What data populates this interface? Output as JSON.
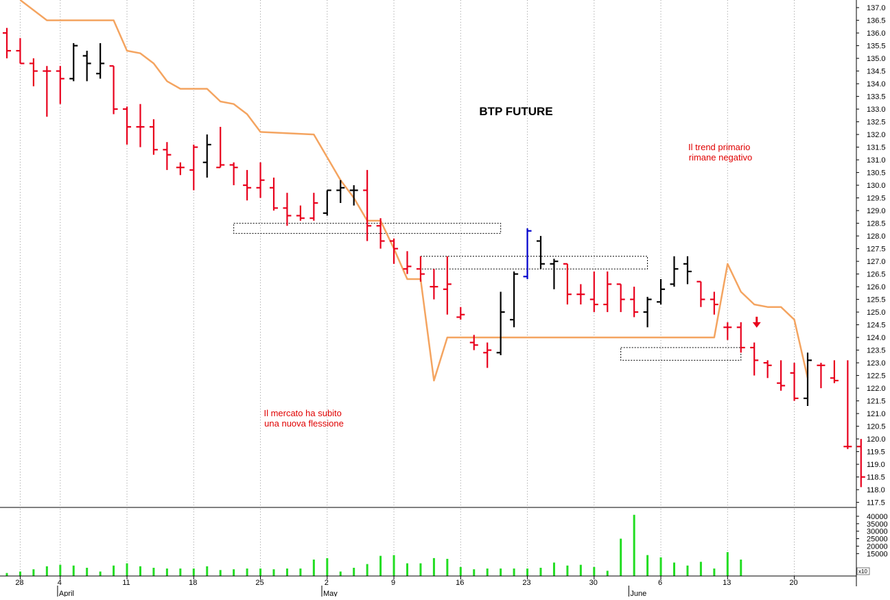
{
  "chart_data": [
    {
      "type": "bar",
      "subtype": "ohlc",
      "title": "BTP FUTURE",
      "ylim": [
        117.3,
        137.3
      ],
      "yticks": [
        117.5,
        118.0,
        118.5,
        119.0,
        119.5,
        120.0,
        120.5,
        121.0,
        121.5,
        122.0,
        122.5,
        123.0,
        123.5,
        124.0,
        124.5,
        125.0,
        125.5,
        126.0,
        126.5,
        127.0,
        127.5,
        128.0,
        128.5,
        129.0,
        129.5,
        130.0,
        130.5,
        131.0,
        131.5,
        132.0,
        132.5,
        133.0,
        133.5,
        134.0,
        134.5,
        135.0,
        135.5,
        136.0,
        136.5,
        137.0
      ],
      "ytick_labels": [
        "117.5",
        "118.0",
        "118.5",
        "119.0",
        "119.5",
        "120.0",
        "120.5",
        "121.0",
        "121.5",
        "122.0",
        "122.5",
        "123.0",
        "123.5",
        "124.0",
        "124.5",
        "125.0",
        "125.5",
        "126.0",
        "126.5",
        "127.0",
        "127.5",
        "128.0",
        "128.5",
        "129.0",
        "129.5",
        "130.0",
        "130.5",
        "131.0",
        "131.5",
        "132.0",
        "132.5",
        "133.0",
        "133.5",
        "134.0",
        "134.5",
        "135.0",
        "135.5",
        "136.0",
        "136.5",
        "137.0"
      ],
      "y_axis_position": "right",
      "grid": true,
      "colors": {
        "down": "#e8001c",
        "up": "#000000",
        "highlight": "#0000cc",
        "line": "#f4a460",
        "box": "#000000"
      },
      "bars": [
        {
          "d": 0,
          "o": 136.0,
          "h": 136.2,
          "l": 135.0,
          "c": 135.3,
          "color": "down"
        },
        {
          "d": 1,
          "o": 135.3,
          "h": 135.8,
          "l": 134.8,
          "c": 134.8,
          "color": "down"
        },
        {
          "d": 2,
          "o": 134.8,
          "h": 135.0,
          "l": 133.9,
          "c": 134.5,
          "color": "down"
        },
        {
          "d": 3,
          "o": 134.5,
          "h": 134.7,
          "l": 132.7,
          "c": 134.5,
          "color": "down"
        },
        {
          "d": 4,
          "o": 134.5,
          "h": 134.7,
          "l": 133.2,
          "c": 134.2,
          "color": "down"
        },
        {
          "d": 5,
          "o": 134.2,
          "h": 135.6,
          "l": 134.1,
          "c": 135.5,
          "color": "up"
        },
        {
          "d": 6,
          "o": 135.1,
          "h": 135.3,
          "l": 134.1,
          "c": 134.8,
          "color": "up"
        },
        {
          "d": 7,
          "o": 134.4,
          "h": 135.6,
          "l": 134.2,
          "c": 134.8,
          "color": "up"
        },
        {
          "d": 8,
          "o": 134.7,
          "h": 134.7,
          "l": 132.8,
          "c": 133.0,
          "color": "down"
        },
        {
          "d": 9,
          "o": 133.0,
          "h": 133.1,
          "l": 131.6,
          "c": 132.3,
          "color": "down"
        },
        {
          "d": 10,
          "o": 132.3,
          "h": 133.2,
          "l": 131.5,
          "c": 132.3,
          "color": "down"
        },
        {
          "d": 11,
          "o": 132.3,
          "h": 132.6,
          "l": 131.2,
          "c": 131.4,
          "color": "down"
        },
        {
          "d": 12,
          "o": 131.4,
          "h": 131.7,
          "l": 130.6,
          "c": 131.2,
          "color": "down"
        },
        {
          "d": 13,
          "o": 130.7,
          "h": 130.9,
          "l": 130.4,
          "c": 130.7,
          "color": "down"
        },
        {
          "d": 14,
          "o": 130.6,
          "h": 131.6,
          "l": 129.8,
          "c": 131.5,
          "color": "down"
        },
        {
          "d": 15,
          "o": 130.9,
          "h": 132.0,
          "l": 130.3,
          "c": 131.6,
          "color": "up"
        },
        {
          "d": 16,
          "o": 130.7,
          "h": 132.3,
          "l": 130.7,
          "c": 130.8,
          "color": "down"
        },
        {
          "d": 17,
          "o": 130.8,
          "h": 130.9,
          "l": 130.0,
          "c": 130.7,
          "color": "down"
        },
        {
          "d": 18,
          "o": 130.0,
          "h": 130.6,
          "l": 129.4,
          "c": 129.9,
          "color": "down"
        },
        {
          "d": 19,
          "o": 129.9,
          "h": 130.9,
          "l": 129.5,
          "c": 130.2,
          "color": "down"
        },
        {
          "d": 20,
          "o": 129.9,
          "h": 130.3,
          "l": 129.0,
          "c": 129.1,
          "color": "down"
        },
        {
          "d": 21,
          "o": 129.1,
          "h": 129.7,
          "l": 128.4,
          "c": 128.8,
          "color": "down"
        },
        {
          "d": 22,
          "o": 128.8,
          "h": 129.2,
          "l": 128.6,
          "c": 128.7,
          "color": "down"
        },
        {
          "d": 23,
          "o": 128.7,
          "h": 129.7,
          "l": 128.6,
          "c": 129.3,
          "color": "down"
        },
        {
          "d": 24,
          "o": 128.9,
          "h": 129.8,
          "l": 128.8,
          "c": 129.8,
          "color": "up"
        },
        {
          "d": 25,
          "o": 129.8,
          "h": 130.2,
          "l": 129.3,
          "c": 129.9,
          "color": "up"
        },
        {
          "d": 26,
          "o": 129.8,
          "h": 130.0,
          "l": 129.2,
          "c": 129.8,
          "color": "up"
        },
        {
          "d": 27,
          "o": 129.8,
          "h": 130.6,
          "l": 127.8,
          "c": 128.4,
          "color": "down"
        },
        {
          "d": 28,
          "o": 128.4,
          "h": 128.7,
          "l": 127.5,
          "c": 127.8,
          "color": "down"
        },
        {
          "d": 29,
          "o": 127.8,
          "h": 127.9,
          "l": 126.9,
          "c": 127.5,
          "color": "down"
        },
        {
          "d": 30,
          "o": 126.7,
          "h": 127.4,
          "l": 126.5,
          "c": 126.8,
          "color": "down"
        },
        {
          "d": 31,
          "o": 126.7,
          "h": 127.2,
          "l": 126.2,
          "c": 126.5,
          "color": "down"
        },
        {
          "d": 32,
          "o": 126.0,
          "h": 126.7,
          "l": 125.5,
          "c": 126.0,
          "color": "down"
        },
        {
          "d": 33,
          "o": 125.9,
          "h": 127.2,
          "l": 124.9,
          "c": 126.1,
          "color": "down"
        },
        {
          "d": 34,
          "o": 124.8,
          "h": 125.2,
          "l": 124.7,
          "c": 124.9,
          "color": "down"
        },
        {
          "d": 35,
          "o": 123.8,
          "h": 124.1,
          "l": 123.5,
          "c": 123.7,
          "color": "down"
        },
        {
          "d": 36,
          "o": 123.4,
          "h": 123.8,
          "l": 122.8,
          "c": 123.5,
          "color": "down"
        },
        {
          "d": 37,
          "o": 123.4,
          "h": 125.8,
          "l": 123.3,
          "c": 125.0,
          "color": "up"
        },
        {
          "d": 38,
          "o": 124.7,
          "h": 126.6,
          "l": 124.4,
          "c": 126.5,
          "color": "up"
        },
        {
          "d": 39,
          "o": 126.4,
          "h": 128.3,
          "l": 126.3,
          "c": 128.2,
          "color": "highlight"
        },
        {
          "d": 40,
          "o": 127.8,
          "h": 128.0,
          "l": 126.7,
          "c": 126.9,
          "color": "up"
        },
        {
          "d": 41,
          "o": 126.9,
          "h": 127.1,
          "l": 125.9,
          "c": 127.0,
          "color": "up"
        },
        {
          "d": 42,
          "o": 126.9,
          "h": 126.9,
          "l": 125.3,
          "c": 125.7,
          "color": "down"
        },
        {
          "d": 43,
          "o": 125.7,
          "h": 126.1,
          "l": 125.3,
          "c": 125.7,
          "color": "down"
        },
        {
          "d": 44,
          "o": 125.5,
          "h": 126.6,
          "l": 125.0,
          "c": 125.3,
          "color": "down"
        },
        {
          "d": 45,
          "o": 125.3,
          "h": 126.6,
          "l": 125.0,
          "c": 126.1,
          "color": "down"
        },
        {
          "d": 46,
          "o": 126.1,
          "h": 126.1,
          "l": 125.0,
          "c": 125.5,
          "color": "down"
        },
        {
          "d": 47,
          "o": 125.5,
          "h": 126.0,
          "l": 124.8,
          "c": 125.0,
          "color": "down"
        },
        {
          "d": 48,
          "o": 125.0,
          "h": 125.6,
          "l": 124.4,
          "c": 125.5,
          "color": "up"
        },
        {
          "d": 49,
          "o": 125.4,
          "h": 126.3,
          "l": 125.3,
          "c": 125.9,
          "color": "up"
        },
        {
          "d": 50,
          "o": 126.1,
          "h": 127.2,
          "l": 126.0,
          "c": 126.7,
          "color": "up"
        },
        {
          "d": 51,
          "o": 126.9,
          "h": 127.2,
          "l": 126.1,
          "c": 126.6,
          "color": "up"
        },
        {
          "d": 52,
          "o": 126.2,
          "h": 126.2,
          "l": 125.2,
          "c": 125.5,
          "color": "down"
        },
        {
          "d": 53,
          "o": 125.5,
          "h": 125.8,
          "l": 124.9,
          "c": 125.3,
          "color": "down"
        },
        {
          "d": 54,
          "o": 124.4,
          "h": 124.6,
          "l": 123.9,
          "c": 124.4,
          "color": "down"
        },
        {
          "d": 55,
          "o": 124.4,
          "h": 124.6,
          "l": 123.4,
          "c": 123.6,
          "color": "down"
        },
        {
          "d": 56,
          "o": 123.6,
          "h": 123.8,
          "l": 122.5,
          "c": 123.1,
          "color": "down"
        },
        {
          "d": 57,
          "o": 123.0,
          "h": 123.1,
          "l": 122.4,
          "c": 122.9,
          "color": "down"
        },
        {
          "d": 58,
          "o": 122.2,
          "h": 123.1,
          "l": 121.9,
          "c": 122.1,
          "color": "down"
        },
        {
          "d": 59,
          "o": 122.6,
          "h": 123.0,
          "l": 121.5,
          "c": 121.6,
          "color": "down"
        },
        {
          "d": 60,
          "o": 121.6,
          "h": 123.4,
          "l": 121.3,
          "c": 123.1,
          "color": "up"
        },
        {
          "d": 61,
          "o": 122.9,
          "h": 123.0,
          "l": 122.0,
          "c": 122.9,
          "color": "down"
        },
        {
          "d": 62,
          "o": 122.4,
          "h": 123.1,
          "l": 122.2,
          "c": 122.3,
          "color": "down"
        },
        {
          "d": 63,
          "o": 119.7,
          "h": 123.1,
          "l": 119.6,
          "c": 119.7,
          "color": "down"
        },
        {
          "d": 64,
          "o": 119.7,
          "h": 120.0,
          "l": 118.1,
          "c": 118.5,
          "color": "down"
        }
      ],
      "line_series": {
        "color": "#f4a460",
        "points": [
          {
            "d": 1,
            "v": 137.3
          },
          {
            "d": 3,
            "v": 136.5
          },
          {
            "d": 8,
            "v": 136.5
          },
          {
            "d": 9,
            "v": 135.3
          },
          {
            "d": 10,
            "v": 135.2
          },
          {
            "d": 11,
            "v": 134.8
          },
          {
            "d": 12,
            "v": 134.1
          },
          {
            "d": 13,
            "v": 133.8
          },
          {
            "d": 15,
            "v": 133.8
          },
          {
            "d": 16,
            "v": 133.3
          },
          {
            "d": 17,
            "v": 133.2
          },
          {
            "d": 18,
            "v": 132.8
          },
          {
            "d": 19,
            "v": 132.1
          },
          {
            "d": 23,
            "v": 132.0
          },
          {
            "d": 24,
            "v": 131.1
          },
          {
            "d": 25,
            "v": 130.2
          },
          {
            "d": 26,
            "v": 129.5
          },
          {
            "d": 27,
            "v": 128.6
          },
          {
            "d": 28,
            "v": 128.6
          },
          {
            "d": 29,
            "v": 127.5
          },
          {
            "d": 30,
            "v": 126.3
          },
          {
            "d": 31,
            "v": 126.3
          },
          {
            "d": 32,
            "v": 122.3
          },
          {
            "d": 33,
            "v": 124.0
          },
          {
            "d": 48,
            "v": 124.0
          },
          {
            "d": 53,
            "v": 124.0
          },
          {
            "d": 54,
            "v": 126.9
          },
          {
            "d": 55,
            "v": 125.8
          },
          {
            "d": 56,
            "v": 125.3
          },
          {
            "d": 57,
            "v": 125.2
          },
          {
            "d": 58,
            "v": 125.2
          },
          {
            "d": 59,
            "v": 124.7
          },
          {
            "d": 60,
            "v": 122.4
          }
        ]
      },
      "boxes": [
        {
          "d0": 17,
          "d1": 37,
          "v0": 128.1,
          "v1": 128.5
        },
        {
          "d0": 31,
          "d1": 48,
          "v0": 126.7,
          "v1": 127.2
        },
        {
          "d0": 46,
          "d1": 55,
          "v0": 123.1,
          "v1": 123.6
        }
      ],
      "annotations": [
        {
          "text": "Il trend primario\nrimane negativo",
          "color": "#e00000"
        },
        {
          "text": "Il mercato ha subito\nuna nuova flessione",
          "color": "#e00000"
        }
      ],
      "arrow": {
        "d": 55,
        "v": 124.6,
        "direction": "down",
        "color": "#e8001c"
      }
    },
    {
      "type": "bar",
      "title": "",
      "ylim": [
        0,
        45000
      ],
      "yticks": [
        15000,
        20000,
        25000,
        30000,
        35000,
        40000
      ],
      "ytick_labels": [
        "15000",
        "20000",
        "25000",
        "30000",
        "35000",
        "40000"
      ],
      "axis_unit_label": "x10",
      "bar_color": "#22dd22",
      "values": [
        2000,
        3000,
        4500,
        6500,
        7500,
        7000,
        5500,
        3000,
        7000,
        8500,
        6500,
        5500,
        5000,
        5000,
        5000,
        6500,
        4000,
        4500,
        5000,
        5000,
        4500,
        5000,
        5000,
        11000,
        12000,
        3000,
        5500,
        8000,
        13500,
        14000,
        8500,
        8500,
        12000,
        11500,
        6000,
        4500,
        5000,
        5000,
        5000,
        5000,
        5500,
        9000,
        7000,
        7500,
        6000,
        3500,
        25000,
        41000,
        14000,
        12500,
        9000,
        7000,
        9500,
        5000,
        16000,
        11000
      ]
    }
  ],
  "x_axis": {
    "tick_labels": [
      {
        "d": 1,
        "label": "28"
      },
      {
        "d": 4,
        "label": "4"
      },
      {
        "d": 9,
        "label": "11"
      },
      {
        "d": 14,
        "label": "18"
      },
      {
        "d": 19,
        "label": "25"
      },
      {
        "d": 24,
        "label": "2"
      },
      {
        "d": 29,
        "label": "9"
      },
      {
        "d": 34,
        "label": "16"
      },
      {
        "d": 39,
        "label": "23"
      },
      {
        "d": 44,
        "label": "30"
      },
      {
        "d": 49,
        "label": "6"
      },
      {
        "d": 54,
        "label": "13"
      },
      {
        "d": 59,
        "label": "20"
      }
    ],
    "month_labels": [
      {
        "d": 3.8,
        "label": "April"
      },
      {
        "d": 23.6,
        "label": "May"
      },
      {
        "d": 46.6,
        "label": "June"
      }
    ]
  }
}
